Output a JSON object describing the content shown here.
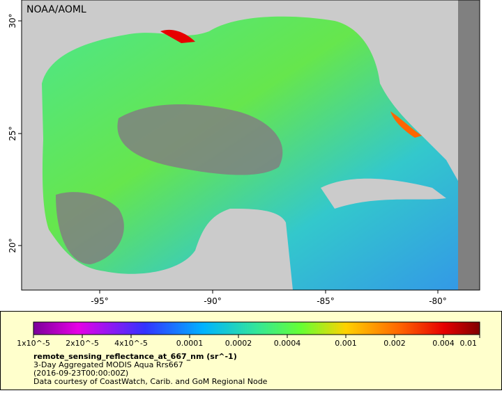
{
  "map": {
    "credit": "NOAA/AOML",
    "lat_labels": [
      "30°",
      "25°",
      "20°"
    ],
    "lon_labels": [
      "-95°",
      "-90°",
      "-85°",
      "-80°"
    ],
    "colorbar_labels": [
      "1x10^-5",
      "2x10^-5",
      "4x10^-5",
      "0.0001",
      "0.0002",
      "0.0004",
      "0.001",
      "0.002",
      "0.004",
      "0.01"
    ],
    "legend": {
      "variable": "remote_sensing_reflectance_at_667_nm (sr^-1)",
      "lines": [
        "3-Day Aggregated MODIS Aqua Rrs667",
        "(2016-09-23T00:00:00Z)",
        "Data courtesy of CoastWatch, Carib. and GoM Regional Node"
      ]
    }
  }
}
